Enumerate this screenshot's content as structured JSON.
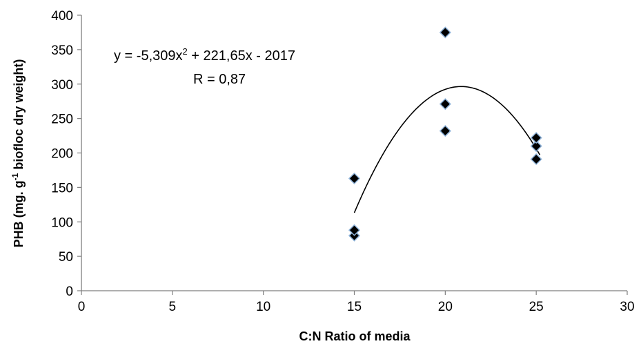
{
  "chart_data": {
    "type": "scatter",
    "xlabel": "C:N Ratio of media",
    "ylabel_main": "PHB (mg. g",
    "ylabel_sup": "-1",
    "ylabel_rest": " biofloc dry weight)",
    "xlim": [
      0,
      30
    ],
    "ylim": [
      0,
      400
    ],
    "xticks": [
      0,
      5,
      10,
      15,
      20,
      25,
      30
    ],
    "yticks": [
      0,
      50,
      100,
      150,
      200,
      250,
      300,
      350,
      400
    ],
    "grid": false,
    "points": [
      {
        "x": 15,
        "y": 80
      },
      {
        "x": 15,
        "y": 88
      },
      {
        "x": 15,
        "y": 163
      },
      {
        "x": 20,
        "y": 232
      },
      {
        "x": 20,
        "y": 271
      },
      {
        "x": 20,
        "y": 375
      },
      {
        "x": 25,
        "y": 191
      },
      {
        "x": 25,
        "y": 210
      },
      {
        "x": 25,
        "y": 222
      }
    ],
    "trendline": {
      "type": "polynomial",
      "a": -5.309,
      "b": 221.65,
      "c": -2017,
      "x_range": [
        15,
        25.2
      ]
    },
    "marker_color": "#000000",
    "marker_edge_color": "#8fb3d9",
    "annotations": {
      "equation_prefix": "y = -5,309x",
      "equation_sup": "2",
      "equation_suffix": " + 221,65x - 2017",
      "r_text": "R = 0,87"
    }
  }
}
